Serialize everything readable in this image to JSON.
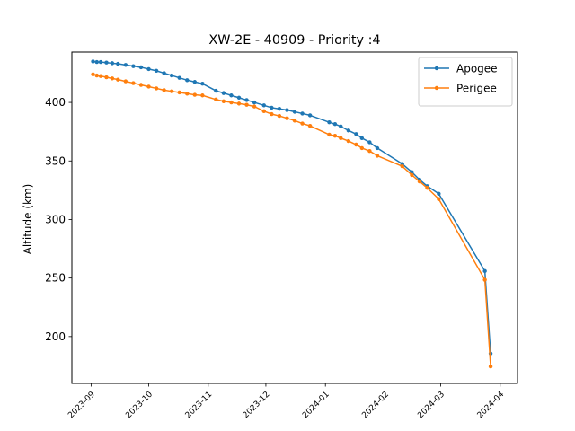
{
  "chart_data": {
    "type": "line",
    "title": "XW-2E - 40909 - Priority :4",
    "xlabel": "",
    "ylabel": "Altitude (km)",
    "x_type": "date",
    "xlim": [
      "2023-08-22",
      "2024-04-10"
    ],
    "ylim": [
      160,
      443
    ],
    "x_ticks": [
      "2023-09",
      "2023-10",
      "2023-11",
      "2023-12",
      "2024-01",
      "2024-02",
      "2024-03",
      "2024-04"
    ],
    "y_ticks": [
      200,
      250,
      300,
      350,
      400
    ],
    "grid": false,
    "legend": "top-right",
    "series": [
      {
        "name": "Apogee",
        "color": "#1f77b4",
        "points": [
          [
            "2023-09-02",
            435
          ],
          [
            "2023-09-04",
            434.5
          ],
          [
            "2023-09-06",
            434.5
          ],
          [
            "2023-09-09",
            434
          ],
          [
            "2023-09-12",
            433.5
          ],
          [
            "2023-09-15",
            433
          ],
          [
            "2023-09-19",
            432
          ],
          [
            "2023-09-23",
            431
          ],
          [
            "2023-09-27",
            430
          ],
          [
            "2023-10-01",
            428.5
          ],
          [
            "2023-10-05",
            427
          ],
          [
            "2023-10-09",
            425
          ],
          [
            "2023-10-13",
            423
          ],
          [
            "2023-10-17",
            421
          ],
          [
            "2023-10-21",
            419
          ],
          [
            "2023-10-25",
            417.5
          ],
          [
            "2023-10-29",
            416
          ],
          [
            "2023-11-05",
            410
          ],
          [
            "2023-11-09",
            408
          ],
          [
            "2023-11-13",
            406
          ],
          [
            "2023-11-17",
            404
          ],
          [
            "2023-11-21",
            402
          ],
          [
            "2023-11-25",
            400
          ],
          [
            "2023-11-30",
            397.5
          ],
          [
            "2023-12-04",
            395.5
          ],
          [
            "2023-12-08",
            394.5
          ],
          [
            "2023-12-12",
            393.5
          ],
          [
            "2023-12-16",
            392
          ],
          [
            "2023-12-20",
            390.5
          ],
          [
            "2023-12-24",
            389
          ],
          [
            "2024-01-03",
            383
          ],
          [
            "2024-01-06",
            381.5
          ],
          [
            "2024-01-09",
            379.5
          ],
          [
            "2024-01-13",
            376
          ],
          [
            "2024-01-17",
            373
          ],
          [
            "2024-01-20",
            369.5
          ],
          [
            "2024-01-24",
            366
          ],
          [
            "2024-01-28",
            361
          ],
          [
            "2024-02-10",
            347.5
          ],
          [
            "2024-02-15",
            340.5
          ],
          [
            "2024-02-19",
            334
          ],
          [
            "2024-02-23",
            328.5
          ],
          [
            "2024-02-29",
            322
          ],
          [
            "2024-03-24",
            256
          ],
          [
            "2024-03-27",
            185.5
          ]
        ]
      },
      {
        "name": "Perigee",
        "color": "#ff7f0e",
        "points": [
          [
            "2023-09-02",
            424
          ],
          [
            "2023-09-04",
            423
          ],
          [
            "2023-09-06",
            422.5
          ],
          [
            "2023-09-09",
            421.5
          ],
          [
            "2023-09-12",
            420.5
          ],
          [
            "2023-09-15",
            419.5
          ],
          [
            "2023-09-19",
            418
          ],
          [
            "2023-09-23",
            416.5
          ],
          [
            "2023-09-27",
            415
          ],
          [
            "2023-10-01",
            413.5
          ],
          [
            "2023-10-05",
            412
          ],
          [
            "2023-10-09",
            410.5
          ],
          [
            "2023-10-13",
            409.5
          ],
          [
            "2023-10-17",
            408.5
          ],
          [
            "2023-10-21",
            407.5
          ],
          [
            "2023-10-25",
            406.5
          ],
          [
            "2023-10-29",
            406
          ],
          [
            "2023-11-05",
            402.5
          ],
          [
            "2023-11-09",
            401
          ],
          [
            "2023-11-13",
            400
          ],
          [
            "2023-11-17",
            399
          ],
          [
            "2023-11-21",
            398
          ],
          [
            "2023-11-25",
            396.5
          ],
          [
            "2023-11-30",
            392.5
          ],
          [
            "2023-12-04",
            390
          ],
          [
            "2023-12-08",
            388.5
          ],
          [
            "2023-12-12",
            386.5
          ],
          [
            "2023-12-16",
            384.5
          ],
          [
            "2023-12-20",
            382
          ],
          [
            "2023-12-24",
            380
          ],
          [
            "2024-01-03",
            372.5
          ],
          [
            "2024-01-06",
            371.5
          ],
          [
            "2024-01-09",
            369.5
          ],
          [
            "2024-01-13",
            367
          ],
          [
            "2024-01-17",
            364
          ],
          [
            "2024-01-20",
            361
          ],
          [
            "2024-01-24",
            358.5
          ],
          [
            "2024-01-28",
            354.5
          ],
          [
            "2024-02-10",
            345.5
          ],
          [
            "2024-02-15",
            338
          ],
          [
            "2024-02-19",
            332.5
          ],
          [
            "2024-02-23",
            327
          ],
          [
            "2024-02-29",
            317.5
          ],
          [
            "2024-03-24",
            248.5
          ],
          [
            "2024-03-27",
            174.5
          ]
        ]
      }
    ]
  }
}
